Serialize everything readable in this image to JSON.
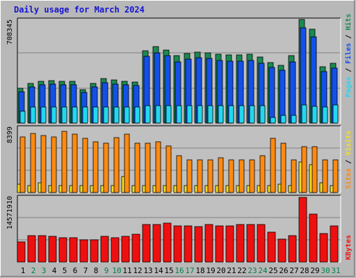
{
  "title": "Daily usage for March 2024",
  "colors": {
    "hits": "#1a8a50",
    "files": "#1450e8",
    "pages": "#22d8f0",
    "visits": "#f0e020",
    "sites": "#ff8a10",
    "kbytes": "#ee1010",
    "day_dark": "#000000",
    "day_weekend": "#00804a"
  },
  "chart_data": [
    {
      "type": "bar",
      "panel": "hits-files-pages",
      "ylabel": "Pages / Files / Hits",
      "ymax_label": "708345",
      "ylim": [
        0,
        708345
      ],
      "categories": [
        "1",
        "2",
        "3",
        "4",
        "5",
        "6",
        "7",
        "8",
        "9",
        "10",
        "11",
        "12",
        "13",
        "14",
        "15",
        "16",
        "17",
        "18",
        "19",
        "20",
        "21",
        "22",
        "23",
        "24",
        "25",
        "26",
        "27",
        "28",
        "29",
        "30",
        "31"
      ],
      "series": [
        {
          "name": "Hits",
          "values": [
            240000,
            270000,
            285000,
            290000,
            285000,
            285000,
            230000,
            270000,
            305000,
            295000,
            285000,
            280000,
            495000,
            525000,
            500000,
            460000,
            475000,
            485000,
            480000,
            470000,
            465000,
            465000,
            470000,
            450000,
            415000,
            395000,
            460000,
            708345,
            640000,
            385000,
            410000
          ]
        },
        {
          "name": "Files",
          "values": [
            215000,
            245000,
            260000,
            265000,
            260000,
            260000,
            210000,
            245000,
            275000,
            265000,
            260000,
            255000,
            455000,
            480000,
            460000,
            420000,
            435000,
            445000,
            440000,
            430000,
            425000,
            425000,
            430000,
            410000,
            380000,
            360000,
            420000,
            650000,
            590000,
            350000,
            375000
          ]
        },
        {
          "name": "Pages",
          "values": [
            80000,
            110000,
            110000,
            110000,
            110000,
            110000,
            110000,
            110000,
            110000,
            110000,
            110000,
            110000,
            120000,
            120000,
            120000,
            120000,
            120000,
            120000,
            120000,
            120000,
            120000,
            120000,
            120000,
            120000,
            40000,
            50000,
            50000,
            125000,
            115000,
            110000,
            125000
          ]
        }
      ]
    },
    {
      "type": "bar",
      "panel": "sites-visits",
      "ylabel": "Sites / Visits",
      "ymax_label": "8399",
      "ylim": [
        0,
        8399
      ],
      "categories": [
        "1",
        "2",
        "3",
        "4",
        "5",
        "6",
        "7",
        "8",
        "9",
        "10",
        "11",
        "12",
        "13",
        "14",
        "15",
        "16",
        "17",
        "18",
        "19",
        "20",
        "21",
        "22",
        "23",
        "24",
        "25",
        "26",
        "27",
        "28",
        "29",
        "30",
        "31"
      ],
      "series": [
        {
          "name": "Visits",
          "values": [
            1100,
            1000,
            1300,
            1000,
            1000,
            1000,
            1000,
            1000,
            1000,
            1000,
            2200,
            1000,
            1000,
            1000,
            1000,
            1000,
            1000,
            1000,
            1000,
            1000,
            1000,
            1000,
            1000,
            1000,
            1000,
            1100,
            1000,
            4200,
            3800,
            1300,
            1000
          ]
        },
        {
          "name": "Sites",
          "values": [
            7600,
            8100,
            7800,
            7600,
            8399,
            8000,
            7400,
            7000,
            6800,
            7500,
            8000,
            6800,
            6800,
            7000,
            6400,
            5100,
            4500,
            4500,
            4500,
            4800,
            4500,
            4500,
            4500,
            5100,
            7400,
            6800,
            4500,
            6300,
            6300,
            4500,
            4500
          ]
        }
      ]
    },
    {
      "type": "bar",
      "panel": "kbytes",
      "ylabel": "KBytes",
      "ymax_label": "14571910",
      "ylim": [
        0,
        14571910
      ],
      "categories": [
        "1",
        "2",
        "3",
        "4",
        "5",
        "6",
        "7",
        "8",
        "9",
        "10",
        "11",
        "12",
        "13",
        "14",
        "15",
        "16",
        "17",
        "18",
        "19",
        "20",
        "21",
        "22",
        "23",
        "24",
        "25",
        "26",
        "27",
        "28",
        "29",
        "30",
        "31"
      ],
      "series": [
        {
          "name": "KBytes",
          "values": [
            4500000,
            6000000,
            6000000,
            5800000,
            5500000,
            5500000,
            5000000,
            5000000,
            5800000,
            5500000,
            5800000,
            6200000,
            8400000,
            8400000,
            8700000,
            8200000,
            8200000,
            8000000,
            8400000,
            8200000,
            8200000,
            8400000,
            8400000,
            8400000,
            6700000,
            5100000,
            6000000,
            14571910,
            10800000,
            6400000,
            8200000
          ]
        }
      ]
    }
  ]
}
